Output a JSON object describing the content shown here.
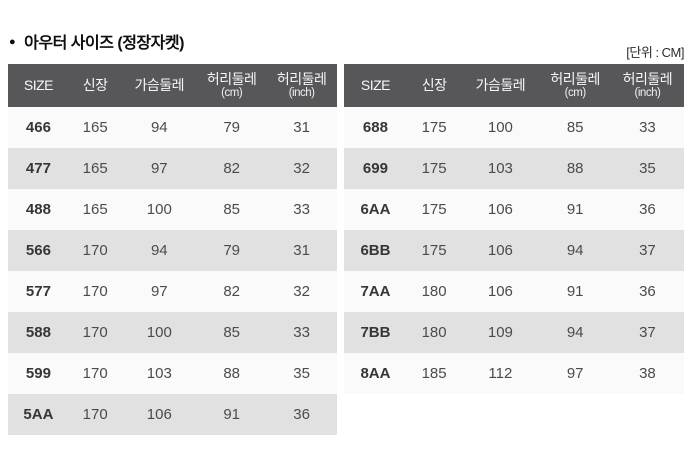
{
  "title": {
    "bullet_icon": "●",
    "text": "아우터 사이즈 (정장자켓)"
  },
  "unit_label": "[단위 : CM]",
  "columns": [
    {
      "label": "SIZE",
      "sub": ""
    },
    {
      "label": "신장",
      "sub": ""
    },
    {
      "label": "가슴둘레",
      "sub": ""
    },
    {
      "label": "허리둘레",
      "sub": "(cm)"
    },
    {
      "label": "허리둘레",
      "sub": "(inch)"
    }
  ],
  "chart_data": [
    {
      "type": "table",
      "title": "아우터 사이즈 (정장자켓)",
      "unit": "CM",
      "columns": [
        "SIZE",
        "신장",
        "가슴둘레",
        "허리둘레 (cm)",
        "허리둘레 (inch)"
      ],
      "rows": [
        [
          "466",
          "165",
          "94",
          "79",
          "31"
        ],
        [
          "477",
          "165",
          "97",
          "82",
          "32"
        ],
        [
          "488",
          "165",
          "100",
          "85",
          "33"
        ],
        [
          "566",
          "170",
          "94",
          "79",
          "31"
        ],
        [
          "577",
          "170",
          "97",
          "82",
          "32"
        ],
        [
          "588",
          "170",
          "100",
          "85",
          "33"
        ],
        [
          "599",
          "170",
          "103",
          "88",
          "35"
        ],
        [
          "5AA",
          "170",
          "106",
          "91",
          "36"
        ]
      ]
    },
    {
      "type": "table",
      "title": "아우터 사이즈 (정장자켓)",
      "unit": "CM",
      "columns": [
        "SIZE",
        "신장",
        "가슴둘레",
        "허리둘레 (cm)",
        "허리둘레 (inch)"
      ],
      "rows": [
        [
          "688",
          "175",
          "100",
          "85",
          "33"
        ],
        [
          "699",
          "175",
          "103",
          "88",
          "35"
        ],
        [
          "6AA",
          "175",
          "106",
          "91",
          "36"
        ],
        [
          "6BB",
          "175",
          "106",
          "94",
          "37"
        ],
        [
          "7AA",
          "180",
          "106",
          "91",
          "36"
        ],
        [
          "7BB",
          "180",
          "109",
          "94",
          "37"
        ],
        [
          "8AA",
          "185",
          "112",
          "97",
          "38"
        ]
      ]
    }
  ],
  "colors": {
    "header_bg": "#57575a",
    "header_text": "#f7f7f7",
    "row_odd_bg": "#fafafa",
    "row_even_bg": "#e1e1e1",
    "size_text": "#363636",
    "value_text": "#4b4b4b"
  },
  "column_widths_pct": [
    "18.5%",
    "16%",
    "23%",
    "21%",
    "21.5%"
  ]
}
